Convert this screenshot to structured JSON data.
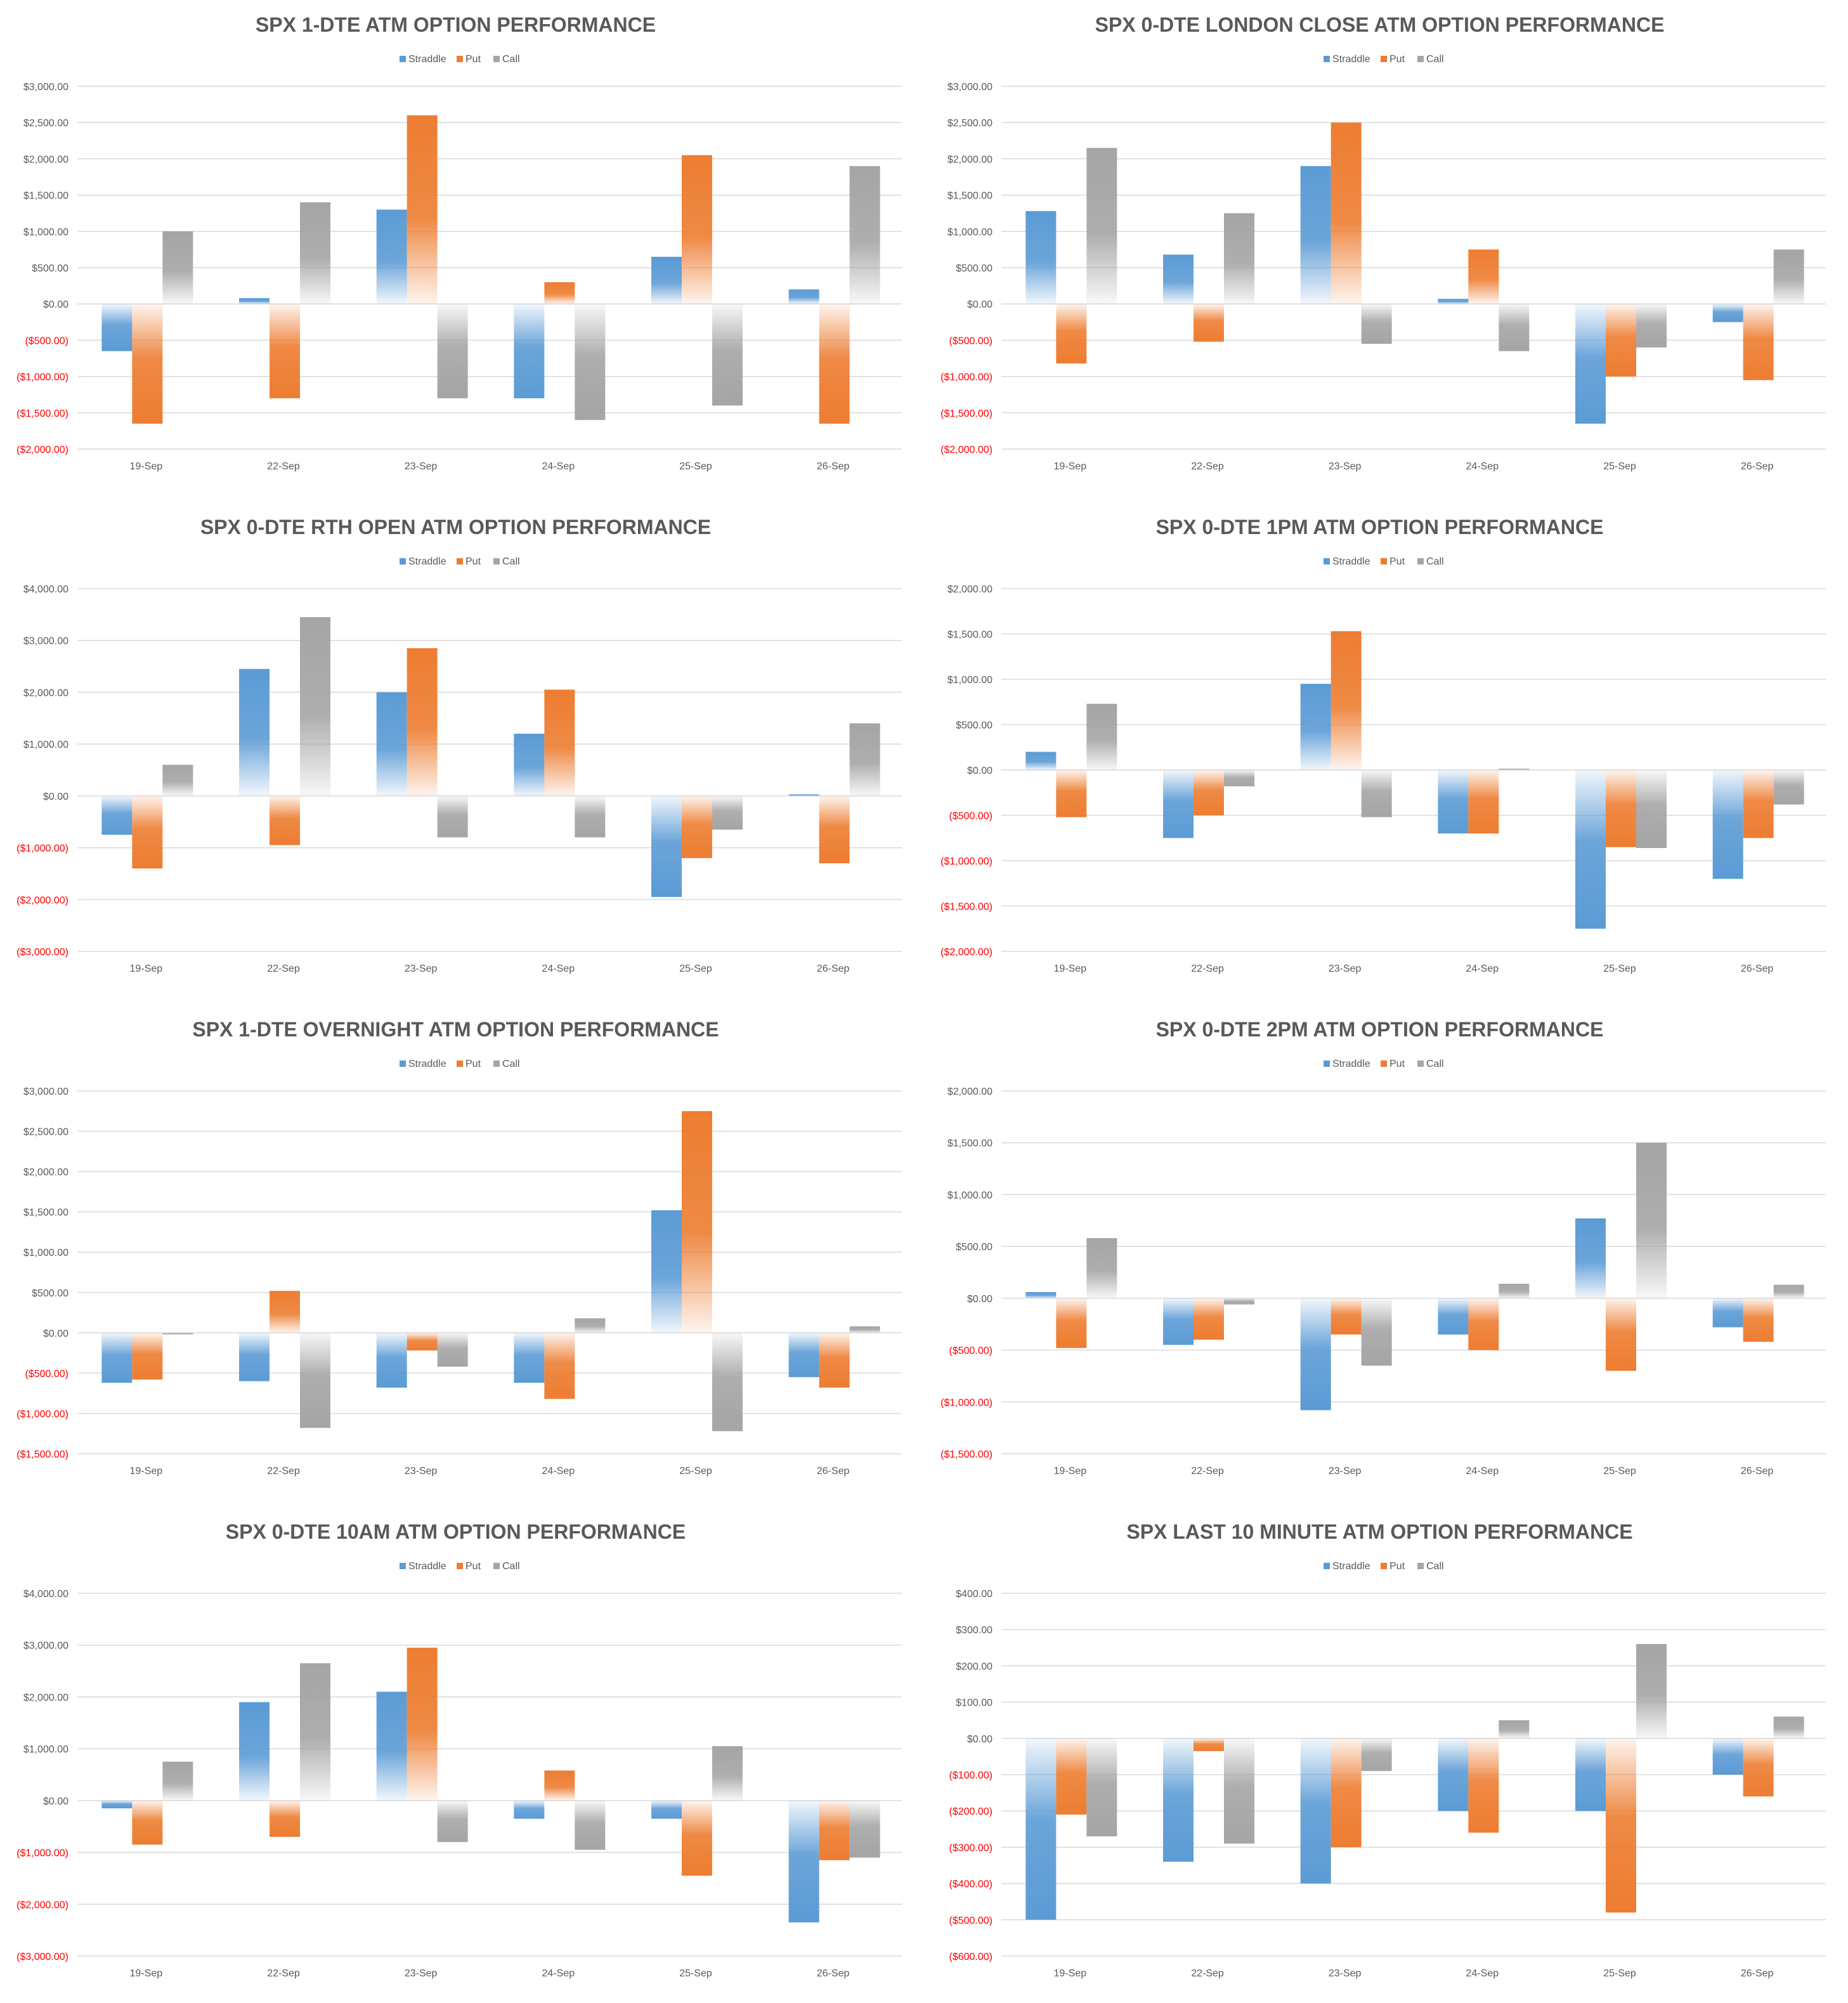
{
  "legend": [
    "Straddle",
    "Put",
    "Call"
  ],
  "colors": {
    "Straddle": "#5B9BD5",
    "Put": "#ED7D31",
    "Call": "#A5A5A5",
    "negative_label": "#FF0000",
    "positive_label": "#595959",
    "title": "#595959",
    "grid": "#D9D9D9"
  },
  "chart_data": [
    {
      "type": "bar",
      "title": "SPX 1-DTE ATM OPTION PERFORMANCE",
      "categories": [
        "19-Sep",
        "22-Sep",
        "23-Sep",
        "24-Sep",
        "25-Sep",
        "26-Sep"
      ],
      "yticks": [
        "$3,000.00",
        "$2,500.00",
        "$2,000.00",
        "$1,500.00",
        "$1,000.00",
        "$500.00",
        "$0.00",
        "($500.00)",
        "($1,000.00)",
        "($1,500.00)",
        "($2,000.00)"
      ],
      "ylim": [
        -2000,
        3000
      ],
      "series": [
        {
          "name": "Straddle",
          "values": [
            -650,
            80,
            1300,
            -1300,
            650,
            200
          ]
        },
        {
          "name": "Put",
          "values": [
            -1650,
            -1300,
            2600,
            300,
            2050,
            -1650
          ]
        },
        {
          "name": "Call",
          "values": [
            1000,
            1400,
            -1300,
            -1600,
            -1400,
            1900
          ]
        }
      ]
    },
    {
      "type": "bar",
      "title": "SPX 0-DTE  LONDON CLOSE ATM OPTION PERFORMANCE",
      "categories": [
        "19-Sep",
        "22-Sep",
        "23-Sep",
        "24-Sep",
        "25-Sep",
        "26-Sep"
      ],
      "yticks": [
        "$3,000.00",
        "$2,500.00",
        "$2,000.00",
        "$1,500.00",
        "$1,000.00",
        "$500.00",
        "$0.00",
        "($500.00)",
        "($1,000.00)",
        "($1,500.00)",
        "($2,000.00)"
      ],
      "ylim": [
        -2000,
        3000
      ],
      "series": [
        {
          "name": "Straddle",
          "values": [
            1280,
            680,
            1900,
            70,
            -1650,
            -250
          ]
        },
        {
          "name": "Put",
          "values": [
            -820,
            -520,
            2500,
            750,
            -1000,
            -1050
          ]
        },
        {
          "name": "Call",
          "values": [
            2150,
            1250,
            -550,
            -650,
            -600,
            750
          ]
        }
      ]
    },
    {
      "type": "bar",
      "title": "SPX 0-DTE RTH OPEN ATM OPTION PERFORMANCE",
      "categories": [
        "19-Sep",
        "22-Sep",
        "23-Sep",
        "24-Sep",
        "25-Sep",
        "26-Sep"
      ],
      "yticks": [
        "$4,000.00",
        "$3,000.00",
        "$2,000.00",
        "$1,000.00",
        "$0.00",
        "($1,000.00)",
        "($2,000.00)",
        "($3,000.00)"
      ],
      "ylim": [
        -3000,
        4000
      ],
      "series": [
        {
          "name": "Straddle",
          "values": [
            -750,
            2450,
            2000,
            1200,
            -1950,
            30
          ]
        },
        {
          "name": "Put",
          "values": [
            -1400,
            -950,
            2850,
            2050,
            -1200,
            -1300
          ]
        },
        {
          "name": "Call",
          "values": [
            600,
            3450,
            -800,
            -800,
            -650,
            1400
          ]
        }
      ]
    },
    {
      "type": "bar",
      "title": "SPX 0-DTE 1PM ATM OPTION PERFORMANCE",
      "categories": [
        "19-Sep",
        "22-Sep",
        "23-Sep",
        "24-Sep",
        "25-Sep",
        "26-Sep"
      ],
      "yticks": [
        "$2,000.00",
        "$1,500.00",
        "$1,000.00",
        "$500.00",
        "$0.00",
        "($500.00)",
        "($1,000.00)",
        "($1,500.00)",
        "($2,000.00)"
      ],
      "ylim": [
        -2000,
        2000
      ],
      "series": [
        {
          "name": "Straddle",
          "values": [
            200,
            -750,
            950,
            -700,
            -1750,
            -1200
          ]
        },
        {
          "name": "Put",
          "values": [
            -520,
            -500,
            1530,
            -700,
            -850,
            -750
          ]
        },
        {
          "name": "Call",
          "values": [
            730,
            -180,
            -520,
            15,
            -860,
            -380
          ]
        }
      ]
    },
    {
      "type": "bar",
      "title": "SPX 1-DTE OVERNIGHT ATM OPTION PERFORMANCE",
      "categories": [
        "19-Sep",
        "22-Sep",
        "23-Sep",
        "24-Sep",
        "25-Sep",
        "26-Sep"
      ],
      "yticks": [
        "$3,000.00",
        "$2,500.00",
        "$2,000.00",
        "$1,500.00",
        "$1,000.00",
        "$500.00",
        "$0.00",
        "($500.00)",
        "($1,000.00)",
        "($1,500.00)"
      ],
      "ylim": [
        -1500,
        3000
      ],
      "series": [
        {
          "name": "Straddle",
          "values": [
            -620,
            -600,
            -680,
            -620,
            1520,
            -550
          ]
        },
        {
          "name": "Put",
          "values": [
            -580,
            520,
            -220,
            -820,
            2750,
            -680
          ]
        },
        {
          "name": "Call",
          "values": [
            -20,
            -1180,
            -420,
            180,
            -1220,
            80
          ]
        }
      ]
    },
    {
      "type": "bar",
      "title": "SPX 0-DTE 2PM ATM OPTION PERFORMANCE",
      "categories": [
        "19-Sep",
        "22-Sep",
        "23-Sep",
        "24-Sep",
        "25-Sep",
        "26-Sep"
      ],
      "yticks": [
        "$2,000.00",
        "$1,500.00",
        "$1,000.00",
        "$500.00",
        "$0.00",
        "($500.00)",
        "($1,000.00)",
        "($1,500.00)"
      ],
      "ylim": [
        -1500,
        2000
      ],
      "series": [
        {
          "name": "Straddle",
          "values": [
            60,
            -450,
            -1080,
            -350,
            770,
            -280
          ]
        },
        {
          "name": "Put",
          "values": [
            -480,
            -400,
            -350,
            -500,
            -700,
            -420
          ]
        },
        {
          "name": "Call",
          "values": [
            580,
            -60,
            -650,
            140,
            1500,
            130
          ]
        }
      ]
    },
    {
      "type": "bar",
      "title": "SPX 0-DTE 10AM ATM OPTION PERFORMANCE",
      "categories": [
        "19-Sep",
        "22-Sep",
        "23-Sep",
        "24-Sep",
        "25-Sep",
        "26-Sep"
      ],
      "yticks": [
        "$4,000.00",
        "$3,000.00",
        "$2,000.00",
        "$1,000.00",
        "$0.00",
        "($1,000.00)",
        "($2,000.00)",
        "($3,000.00)"
      ],
      "ylim": [
        -3000,
        4000
      ],
      "series": [
        {
          "name": "Straddle",
          "values": [
            -150,
            1900,
            2100,
            -350,
            -350,
            -2350
          ]
        },
        {
          "name": "Put",
          "values": [
            -850,
            -700,
            2950,
            580,
            -1450,
            -1150
          ]
        },
        {
          "name": "Call",
          "values": [
            750,
            2650,
            -800,
            -950,
            1050,
            -1100
          ]
        }
      ]
    },
    {
      "type": "bar",
      "title": "SPX LAST 10 MINUTE ATM OPTION PERFORMANCE",
      "categories": [
        "19-Sep",
        "22-Sep",
        "23-Sep",
        "24-Sep",
        "25-Sep",
        "26-Sep"
      ],
      "yticks": [
        "$400.00",
        "$300.00",
        "$200.00",
        "$100.00",
        "$0.00",
        "($100.00)",
        "($200.00)",
        "($300.00)",
        "($400.00)",
        "($500.00)",
        "($600.00)"
      ],
      "ylim": [
        -600,
        400
      ],
      "series": [
        {
          "name": "Straddle",
          "values": [
            -500,
            -340,
            -400,
            -200,
            -200,
            -100
          ]
        },
        {
          "name": "Put",
          "values": [
            -210,
            -35,
            -300,
            -260,
            -480,
            -160
          ]
        },
        {
          "name": "Call",
          "values": [
            -270,
            -290,
            -90,
            50,
            260,
            60
          ]
        }
      ]
    }
  ]
}
